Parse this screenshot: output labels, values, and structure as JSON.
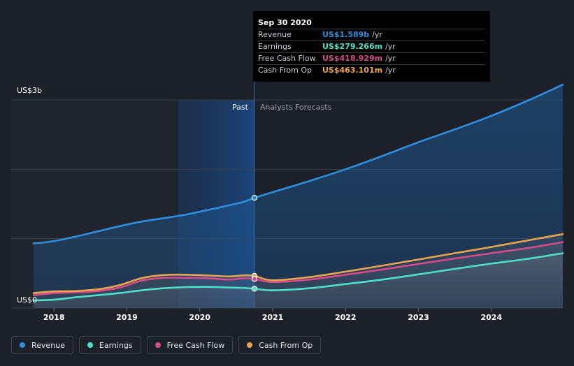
{
  "chart_data": {
    "type": "area",
    "title": "",
    "y_axis": {
      "top_label": "US$3b",
      "bottom_label": "US$0",
      "ylim": [
        0,
        3000
      ]
    },
    "x_ticks": [
      "2018",
      "2019",
      "2020",
      "2021",
      "2022",
      "2023",
      "2024"
    ],
    "x_range": [
      2017.72,
      2024.98
    ],
    "divider_x": 2020.75,
    "past_start": 2019.7,
    "past_label": "Past",
    "forecast_label": "Analysts Forecasts",
    "series": [
      {
        "name": "Revenue",
        "color": "#2d8fe0",
        "x": [
          2017.72,
          2018.0,
          2018.3,
          2018.6,
          2018.9,
          2019.2,
          2019.5,
          2019.8,
          2020.1,
          2020.4,
          2020.6,
          2020.75,
          2021.0,
          2021.5,
          2022.0,
          2022.5,
          2023.0,
          2023.5,
          2024.0,
          2024.5,
          2024.98
        ],
        "y": [
          930,
          965,
          1030,
          1105,
          1180,
          1245,
          1295,
          1345,
          1410,
          1480,
          1530,
          1589,
          1670,
          1830,
          2000,
          2190,
          2390,
          2575,
          2770,
          2990,
          3220
        ]
      },
      {
        "name": "Earnings",
        "color": "#4fe0c9",
        "x": [
          2017.72,
          2018.0,
          2018.3,
          2018.6,
          2018.9,
          2019.2,
          2019.5,
          2019.8,
          2020.1,
          2020.4,
          2020.6,
          2020.75,
          2021.0,
          2021.5,
          2022.0,
          2022.5,
          2023.0,
          2023.5,
          2024.0,
          2024.5,
          2024.98
        ],
        "y": [
          110,
          120,
          155,
          185,
          215,
          255,
          285,
          300,
          305,
          295,
          290,
          279,
          255,
          285,
          345,
          410,
          485,
          565,
          640,
          710,
          790
        ]
      },
      {
        "name": "Free Cash Flow",
        "color": "#d64b8a",
        "x": [
          2017.72,
          2018.0,
          2018.3,
          2018.6,
          2018.9,
          2019.2,
          2019.5,
          2019.8,
          2020.1,
          2020.4,
          2020.6,
          2020.75,
          2021.0,
          2021.5,
          2022.0,
          2022.5,
          2023.0,
          2023.5,
          2024.0,
          2024.5,
          2024.98
        ],
        "y": [
          185,
          215,
          225,
          245,
          295,
          395,
          435,
          435,
          430,
          410,
          430,
          419,
          375,
          410,
          480,
          555,
          635,
          715,
          790,
          865,
          950
        ]
      },
      {
        "name": "Cash From Op",
        "color": "#e9a44f",
        "x": [
          2017.72,
          2018.0,
          2018.3,
          2018.6,
          2018.9,
          2019.2,
          2019.5,
          2019.8,
          2020.1,
          2020.4,
          2020.6,
          2020.75,
          2021.0,
          2021.5,
          2022.0,
          2022.5,
          2023.0,
          2023.5,
          2024.0,
          2024.5,
          2024.98
        ],
        "y": [
          215,
          240,
          245,
          270,
          330,
          430,
          475,
          480,
          470,
          455,
          470,
          463,
          400,
          445,
          525,
          610,
          700,
          790,
          880,
          975,
          1065
        ]
      }
    ],
    "highlight": {
      "x": 2020.75
    }
  },
  "tooltip": {
    "date": "Sep 30 2020",
    "rows": [
      {
        "label": "Revenue",
        "value": "US$1.589b",
        "unit": "/yr",
        "color": "#2d8fe0"
      },
      {
        "label": "Earnings",
        "value": "US$279.266m",
        "unit": "/yr",
        "color": "#4fe0c9"
      },
      {
        "label": "Free Cash Flow",
        "value": "US$418.929m",
        "unit": "/yr",
        "color": "#d64b8a"
      },
      {
        "label": "Cash From Op",
        "value": "US$463.101m",
        "unit": "/yr",
        "color": "#e9a44f"
      }
    ]
  },
  "legend": [
    {
      "label": "Revenue",
      "color": "#2d8fe0"
    },
    {
      "label": "Earnings",
      "color": "#4fe0c9"
    },
    {
      "label": "Free Cash Flow",
      "color": "#d64b8a"
    },
    {
      "label": "Cash From Op",
      "color": "#e9a44f"
    }
  ]
}
